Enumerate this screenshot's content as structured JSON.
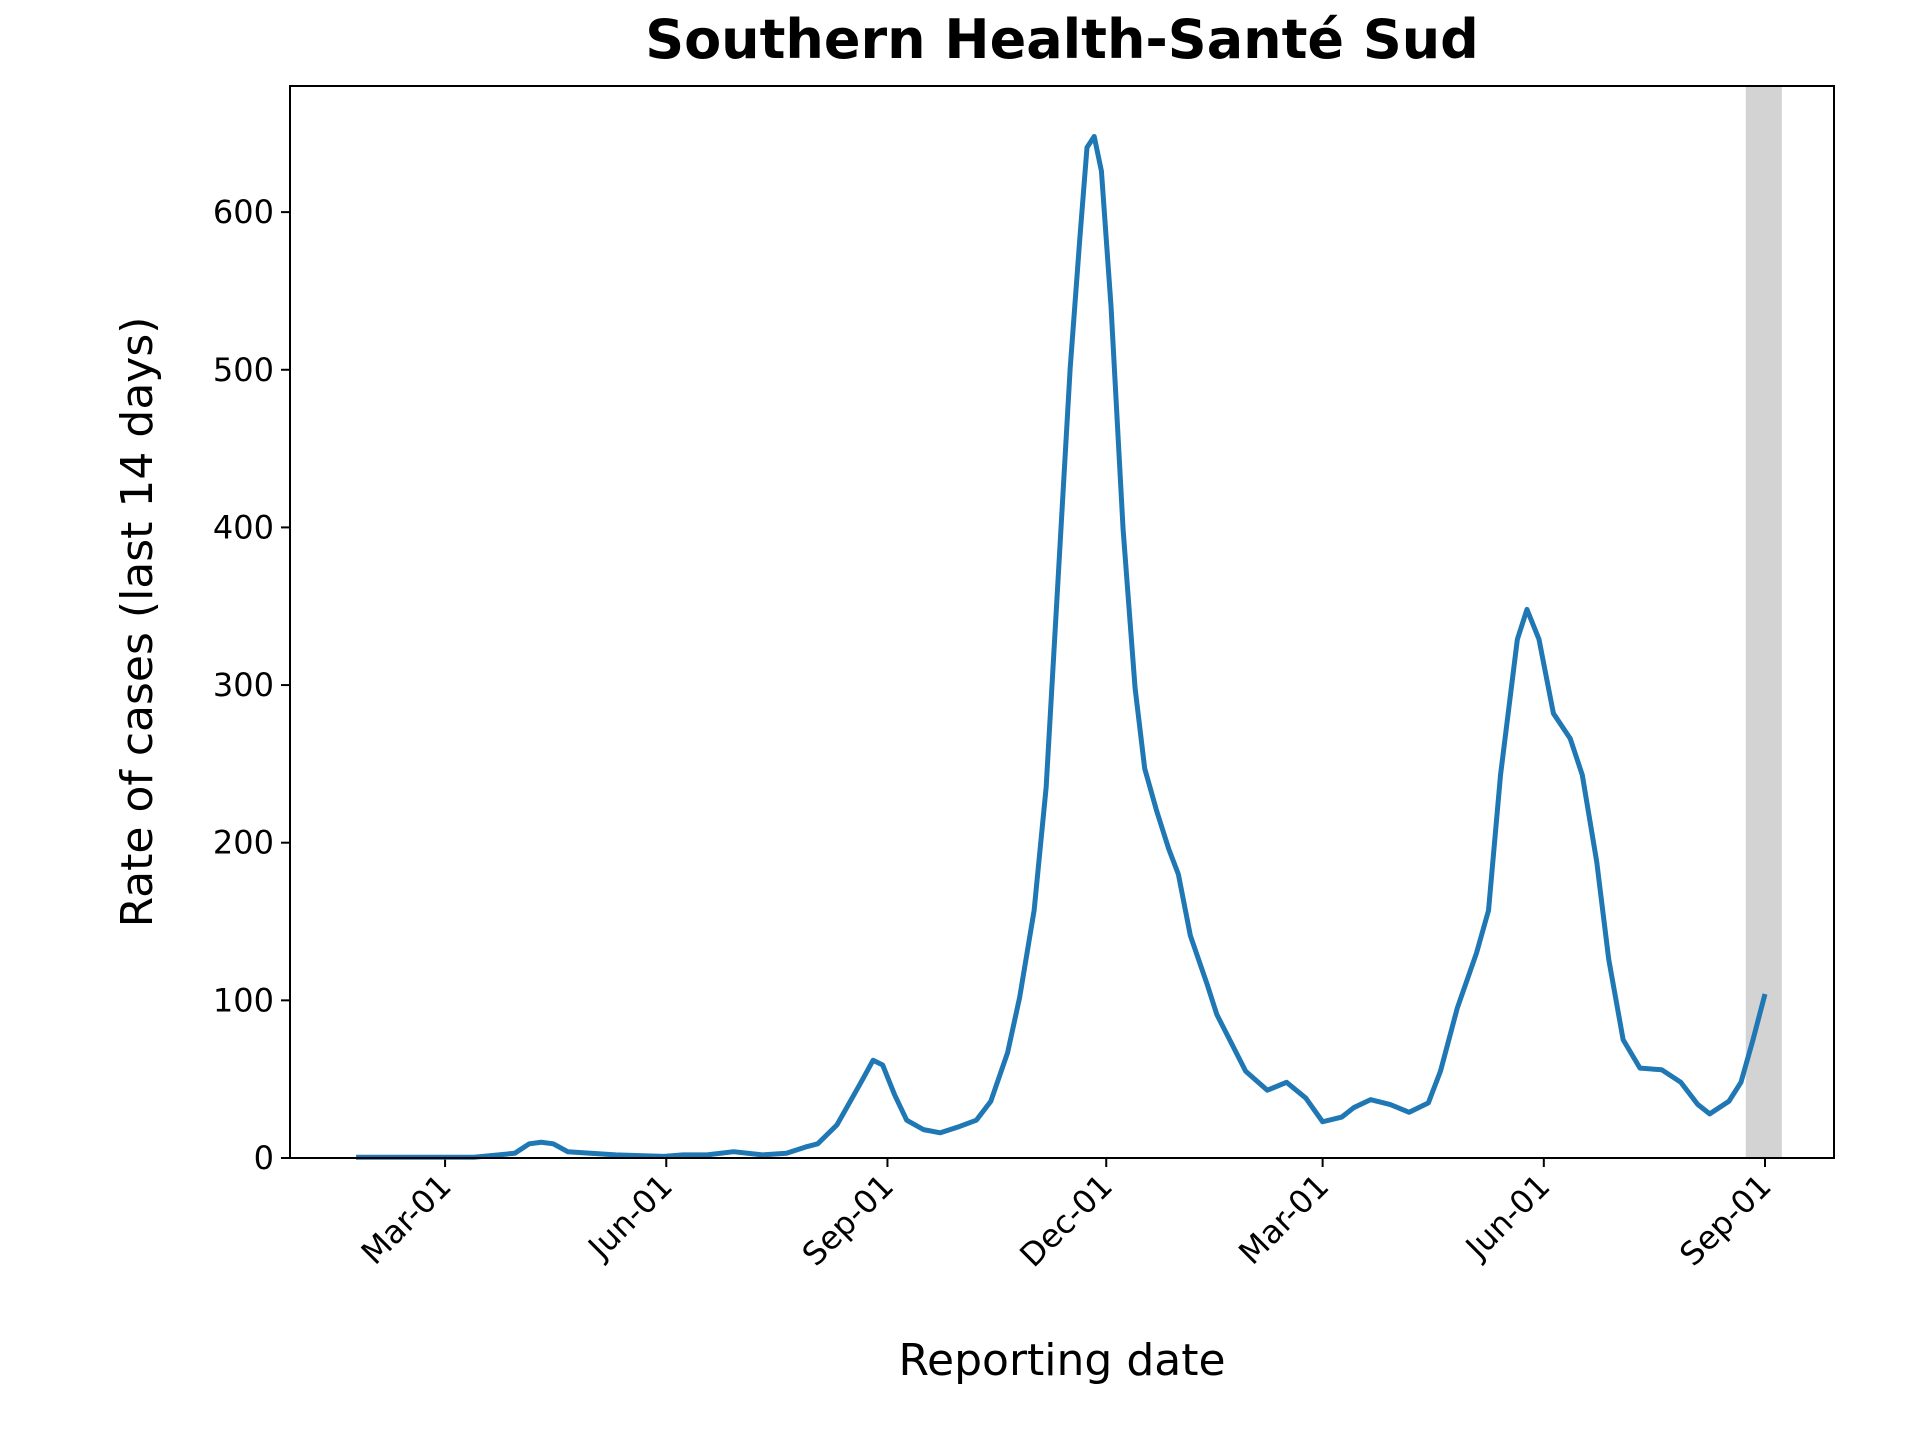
{
  "chart_data": {
    "type": "line",
    "title": "Southern Health-Santé Sud",
    "x_label": "Reporting date",
    "y_label": "Rate of cases (last 14 days)",
    "x": [
      23,
      72,
      89,
      95,
      100,
      105,
      111,
      131,
      151,
      159,
      169,
      180,
      192,
      202,
      210,
      215,
      223,
      233,
      238,
      242,
      247,
      252,
      259,
      266,
      274,
      281,
      287,
      294,
      299,
      305,
      310,
      315,
      320,
      324,
      327,
      330,
      333,
      337,
      342,
      347,
      351,
      356,
      361,
      365,
      370,
      377,
      381,
      387,
      393,
      402,
      410,
      418,
      425,
      433,
      438,
      445,
      453,
      461,
      469,
      474,
      481,
      489,
      494,
      499,
      506,
      510,
      515,
      521,
      528,
      533,
      539,
      544,
      550,
      557,
      566,
      574,
      581,
      586,
      594,
      599,
      604,
      609
    ],
    "series": [
      {
        "name": "Rate of cases",
        "color": "#1f77b4",
        "values": [
          0.5,
          0.5,
          3,
          9,
          10,
          9,
          4,
          2,
          1,
          2,
          2,
          4,
          2,
          3,
          7,
          9,
          21,
          48,
          62,
          59,
          40,
          24,
          18,
          16,
          20,
          24,
          36,
          67,
          102,
          157,
          235,
          368,
          501,
          583,
          641,
          648,
          626,
          540,
          399,
          298,
          247,
          220,
          196,
          180,
          141,
          110,
          91,
          73,
          55,
          43,
          48,
          38,
          23,
          26,
          32,
          37,
          34,
          29,
          35,
          55,
          95,
          130,
          157,
          243,
          329,
          348,
          329,
          282,
          266,
          243,
          188,
          126,
          75,
          57,
          56,
          48,
          34,
          28,
          36,
          48,
          75,
          104
        ]
      }
    ],
    "xlim": [
      -4.5,
      637.7
    ],
    "xticks": [
      {
        "value": 60,
        "label": "Mar-01"
      },
      {
        "value": 152,
        "label": "Jun-01"
      },
      {
        "value": 244,
        "label": "Sep-01"
      },
      {
        "value": 335,
        "label": "Dec-01"
      },
      {
        "value": 425,
        "label": "Mar-01"
      },
      {
        "value": 517,
        "label": "Jun-01"
      },
      {
        "value": 609,
        "label": "Sep-01"
      }
    ],
    "ylim": [
      0,
      680
    ],
    "yticks": [
      0,
      100,
      200,
      300,
      400,
      500,
      600
    ],
    "shaded_span": {
      "range": [
        601,
        616
      ],
      "color": "#d3d3d3"
    },
    "grid": false
  }
}
